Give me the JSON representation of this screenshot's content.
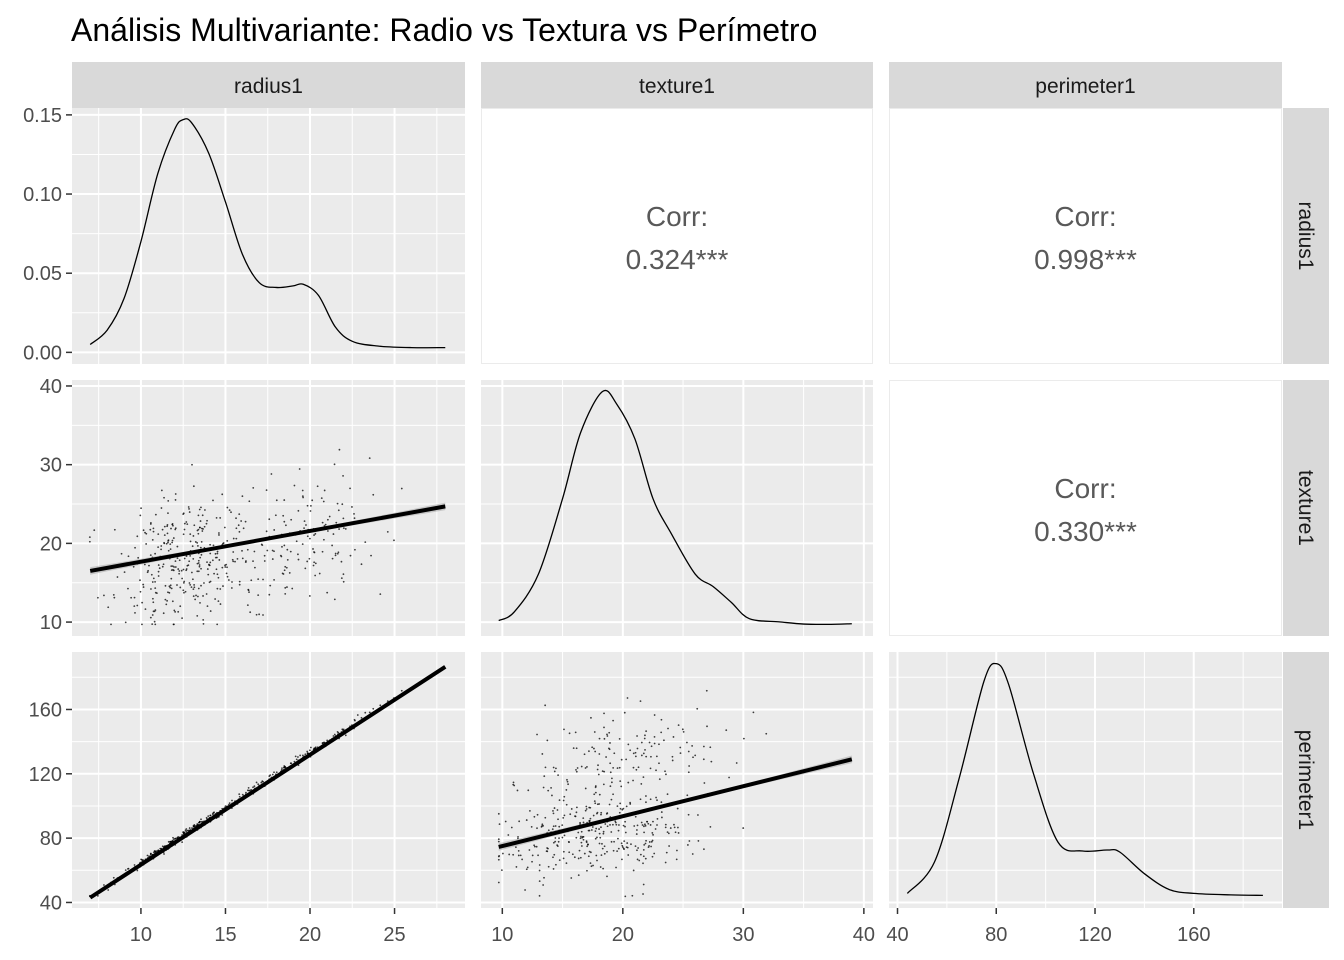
{
  "title": "Análisis Multivariante: Radio vs Textura vs Perímetro",
  "chart_data": {
    "type": "scatter-matrix",
    "title": "Análisis Multivariante: Radio vs Textura vs Perímetro",
    "variables": [
      "radius1",
      "texture1",
      "perimeter1"
    ],
    "corr_label": "Corr:",
    "correlations": [
      {
        "row": "radius1",
        "col": "texture1",
        "label": "0.324***",
        "value": 0.324
      },
      {
        "row": "radius1",
        "col": "perimeter1",
        "label": "0.998***",
        "value": 0.998
      },
      {
        "row": "texture1",
        "col": "perimeter1",
        "label": "0.330***",
        "value": 0.33
      }
    ],
    "ranges": {
      "radius1": [
        6.98,
        28.11
      ],
      "texture1": [
        9.71,
        39.28
      ],
      "perimeter1": [
        43.79,
        188.5
      ]
    },
    "density_ylim": [
      0,
      0.15
    ],
    "x_ticks": {
      "radius1": [
        10,
        15,
        20,
        25
      ],
      "texture1": [
        10,
        20,
        30,
        40
      ],
      "perimeter1": [
        40,
        80,
        120,
        160
      ]
    },
    "y_ticks": {
      "density": [
        0.0,
        0.05,
        0.1,
        0.15
      ],
      "texture1": [
        10,
        20,
        30,
        40
      ],
      "perimeter1": [
        40,
        80,
        120,
        160
      ]
    },
    "y_tick_labels": {
      "density": [
        "0.00",
        "0.05",
        "0.10",
        "0.15"
      ]
    },
    "densities": {
      "radius1": [
        [
          7.0,
          0.005
        ],
        [
          8.0,
          0.014
        ],
        [
          9.0,
          0.034
        ],
        [
          10.0,
          0.07
        ],
        [
          11.0,
          0.113
        ],
        [
          12.0,
          0.141
        ],
        [
          12.5,
          0.147
        ],
        [
          13.0,
          0.145
        ],
        [
          14.0,
          0.126
        ],
        [
          15.0,
          0.095
        ],
        [
          16.0,
          0.062
        ],
        [
          17.0,
          0.044
        ],
        [
          18.0,
          0.041
        ],
        [
          19.0,
          0.042
        ],
        [
          19.6,
          0.043
        ],
        [
          20.5,
          0.036
        ],
        [
          21.5,
          0.016
        ],
        [
          22.5,
          0.007
        ],
        [
          24.0,
          0.004
        ],
        [
          26.0,
          0.003
        ],
        [
          28.0,
          0.003
        ]
      ],
      "texture1": [
        [
          9.7,
          0.0012
        ],
        [
          11.0,
          0.004
        ],
        [
          13.0,
          0.016
        ],
        [
          15.0,
          0.04
        ],
        [
          16.5,
          0.061
        ],
        [
          18.3,
          0.074
        ],
        [
          19.5,
          0.07
        ],
        [
          21.0,
          0.059
        ],
        [
          22.5,
          0.04
        ],
        [
          24.0,
          0.029
        ],
        [
          26.0,
          0.016
        ],
        [
          27.5,
          0.012
        ],
        [
          29.0,
          0.007
        ],
        [
          30.5,
          0.0018
        ],
        [
          33.0,
          0.0008
        ],
        [
          35.0,
          0.0001
        ],
        [
          37.0,
          0.0
        ],
        [
          39.0,
          0.0002
        ]
      ],
      "perimeter1": [
        [
          44.0,
          0.0003
        ],
        [
          55.0,
          0.0035
        ],
        [
          65.0,
          0.012
        ],
        [
          75.0,
          0.0218
        ],
        [
          80.0,
          0.0236
        ],
        [
          85.0,
          0.0215
        ],
        [
          95.0,
          0.0125
        ],
        [
          105.0,
          0.0055
        ],
        [
          115.0,
          0.0046
        ],
        [
          125.0,
          0.0047
        ],
        [
          130.0,
          0.0045
        ],
        [
          140.0,
          0.0023
        ],
        [
          150.0,
          0.0007
        ],
        [
          160.0,
          0.0003
        ],
        [
          175.0,
          0.00015
        ],
        [
          188.0,
          0.0001
        ]
      ]
    },
    "regressions": [
      {
        "x": "radius1",
        "y": "texture1",
        "line": [
          [
            7.0,
            16.5
          ],
          [
            28.0,
            24.7
          ]
        ]
      },
      {
        "x": "radius1",
        "y": "perimeter1",
        "line": [
          [
            7.0,
            43.0
          ],
          [
            28.0,
            186.5
          ]
        ]
      },
      {
        "x": "texture1",
        "y": "perimeter1",
        "line": [
          [
            9.7,
            74.5
          ],
          [
            39.0,
            129.0
          ]
        ]
      }
    ]
  },
  "colors": {
    "panel_bg": "#ebebeb",
    "grid": "#ffffff",
    "strip_bg": "#d9d9d9",
    "line": "#000000",
    "ribbon": "#999999",
    "point": "#000000"
  }
}
